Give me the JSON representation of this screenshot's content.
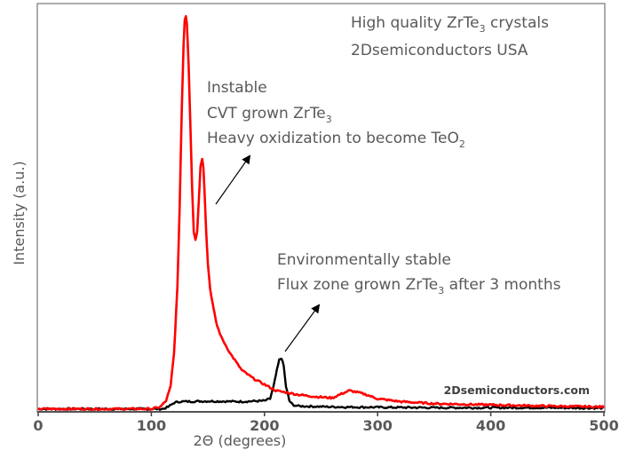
{
  "chart_data": {
    "type": "line",
    "title": "",
    "xlabel": "2Θ (degrees)",
    "ylabel": "Intensity (a.u.)",
    "xlim": [
      0,
      500
    ],
    "ylim": [
      0,
      100
    ],
    "xticks": [
      "0",
      "100",
      "200",
      "300",
      "400",
      "500"
    ],
    "xtick_values": [
      0,
      100,
      200,
      300,
      400,
      500
    ],
    "grid": false,
    "colors": {
      "cvt": "#ff0000",
      "flux": "#000000",
      "axis": "#808080",
      "text": "#595959"
    },
    "series": [
      {
        "name": "CVT grown ZrTe3 (instable)",
        "color": "#ff0000",
        "x": [
          0,
          50,
          100,
          108,
          113,
          117,
          120,
          123,
          125,
          127,
          128.5,
          129.5,
          130.5,
          131.5,
          133,
          134.5,
          136,
          137.5,
          139,
          140.5,
          142,
          143.5,
          145,
          146,
          147,
          148.5,
          150,
          152,
          155,
          158,
          162,
          166,
          170,
          175,
          180,
          190,
          200,
          210,
          220,
          230,
          245,
          260,
          268,
          275,
          282,
          290,
          300,
          320,
          350,
          400,
          450,
          500
        ],
        "y": [
          0.5,
          0.5,
          0.5,
          1,
          2.5,
          6,
          14,
          30,
          50,
          75,
          90,
          96,
          97,
          95,
          85,
          70,
          55,
          44,
          42,
          44,
          52,
          60,
          62,
          60,
          54,
          44,
          36,
          30,
          25,
          21,
          18,
          16,
          14,
          12,
          10,
          8,
          6.5,
          5,
          4.5,
          4,
          3.5,
          3.2,
          4.2,
          5,
          4.6,
          4,
          3,
          2.3,
          1.8,
          1.5,
          1.2,
          1.0
        ]
      },
      {
        "name": "Flux zone grown ZrTe3 after 3 months (environmentally stable)",
        "color": "#000000",
        "x": [
          0,
          50,
          100,
          110,
          115,
          120,
          125,
          150,
          180,
          200,
          205,
          208,
          211,
          213,
          215,
          217,
          219,
          222,
          225,
          230,
          260,
          300,
          350,
          400,
          450,
          500
        ],
        "y": [
          0.5,
          0.5,
          0.5,
          0.5,
          1,
          2,
          2.3,
          2.4,
          2.3,
          2.5,
          3,
          6,
          10,
          12.5,
          13,
          11,
          6,
          2.5,
          1.5,
          1.2,
          1.0,
          0.9,
          0.8,
          0.8,
          0.8,
          0.7
        ]
      }
    ],
    "annotations": {
      "header_line1_main": "High quality ZrTe",
      "header_line1_sub": "3",
      "header_line1_tail": " crystals",
      "header_line2": "2Dsemiconductors USA",
      "cvt_line1": "Instable",
      "cvt_line2_main": "CVT grown ZrTe",
      "cvt_line2_sub": "3",
      "cvt_line3_main": "Heavy oxidization to become TeO",
      "cvt_line3_sub": "2",
      "flux_line1": "Environmentally stable",
      "flux_line2_main": "Flux zone grown ZrTe",
      "flux_line2_sub": "3",
      "flux_line2_tail": " after 3 months",
      "watermark": "2Dsemiconductors.com"
    }
  }
}
